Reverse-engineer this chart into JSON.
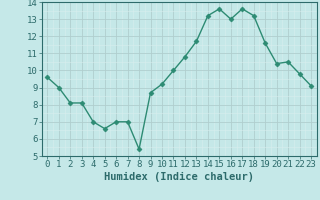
{
  "x": [
    0,
    1,
    2,
    3,
    4,
    5,
    6,
    7,
    8,
    9,
    10,
    11,
    12,
    13,
    14,
    15,
    16,
    17,
    18,
    19,
    20,
    21,
    22,
    23
  ],
  "y": [
    9.6,
    9.0,
    8.1,
    8.1,
    7.0,
    6.6,
    7.0,
    7.0,
    5.4,
    8.7,
    9.2,
    10.0,
    10.8,
    11.7,
    13.2,
    13.6,
    13.0,
    13.6,
    13.2,
    11.6,
    10.4,
    10.5,
    9.8,
    9.1
  ],
  "line_color": "#2d8b73",
  "marker": "D",
  "marker_size": 2.5,
  "bg_color": "#c5e8e8",
  "grid_major_color": "#b0cece",
  "grid_minor_color": "#d8eeee",
  "xlabel": "Humidex (Indice chaleur)",
  "ylim": [
    5,
    14
  ],
  "xlim": [
    -0.5,
    23.5
  ],
  "yticks": [
    5,
    6,
    7,
    8,
    9,
    10,
    11,
    12,
    13,
    14
  ],
  "xticks": [
    0,
    1,
    2,
    3,
    4,
    5,
    6,
    7,
    8,
    9,
    10,
    11,
    12,
    13,
    14,
    15,
    16,
    17,
    18,
    19,
    20,
    21,
    22,
    23
  ],
  "font_color": "#2d6b6b",
  "fontsize_label": 7.5,
  "fontsize_tick": 6.5,
  "linewidth": 1.0
}
